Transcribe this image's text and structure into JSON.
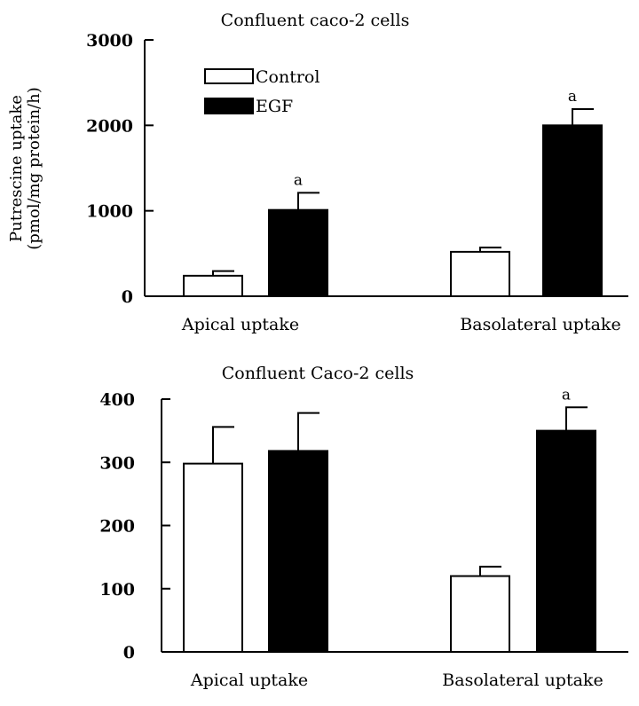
{
  "chart_data": [
    {
      "type": "bar",
      "title": "Confluent caco-2 cells",
      "ylabel_line1": "Putrescine uptake",
      "ylabel_line2": "(pmol/mg protein/h)",
      "ylim": [
        0,
        3000
      ],
      "yticks": [
        0,
        1000,
        2000,
        3000
      ],
      "ytick_labels": [
        "0",
        "1000",
        "2000",
        "3000"
      ],
      "categories": [
        "Apical uptake",
        "Basolateral uptake"
      ],
      "legend": {
        "position": "top-left",
        "entries": [
          "Control",
          "EGF"
        ]
      },
      "series": [
        {
          "name": "Control",
          "fill": "#ffffff",
          "values": [
            240,
            520
          ],
          "errors": [
            55,
            50
          ],
          "annotations": [
            "",
            ""
          ]
        },
        {
          "name": "EGF",
          "fill": "#000000",
          "values": [
            1010,
            2000
          ],
          "errors": [
            200,
            190
          ],
          "annotations": [
            "a",
            "a"
          ]
        }
      ]
    },
    {
      "type": "bar",
      "title": "Confluent Caco-2 cells",
      "ylim": [
        0,
        400
      ],
      "yticks": [
        0,
        100,
        200,
        300,
        400
      ],
      "ytick_labels": [
        "0",
        "100",
        "200",
        "300",
        "400"
      ],
      "categories": [
        "Apical uptake",
        "Basolateral uptake"
      ],
      "series": [
        {
          "fill": "#ffffff",
          "values": [
            298,
            120
          ],
          "errors": [
            58,
            15
          ],
          "annotations": [
            "",
            ""
          ]
        },
        {
          "fill": "#000000",
          "values": [
            318,
            350
          ],
          "errors": [
            60,
            37
          ],
          "annotations": [
            "",
            "a"
          ]
        }
      ]
    }
  ]
}
